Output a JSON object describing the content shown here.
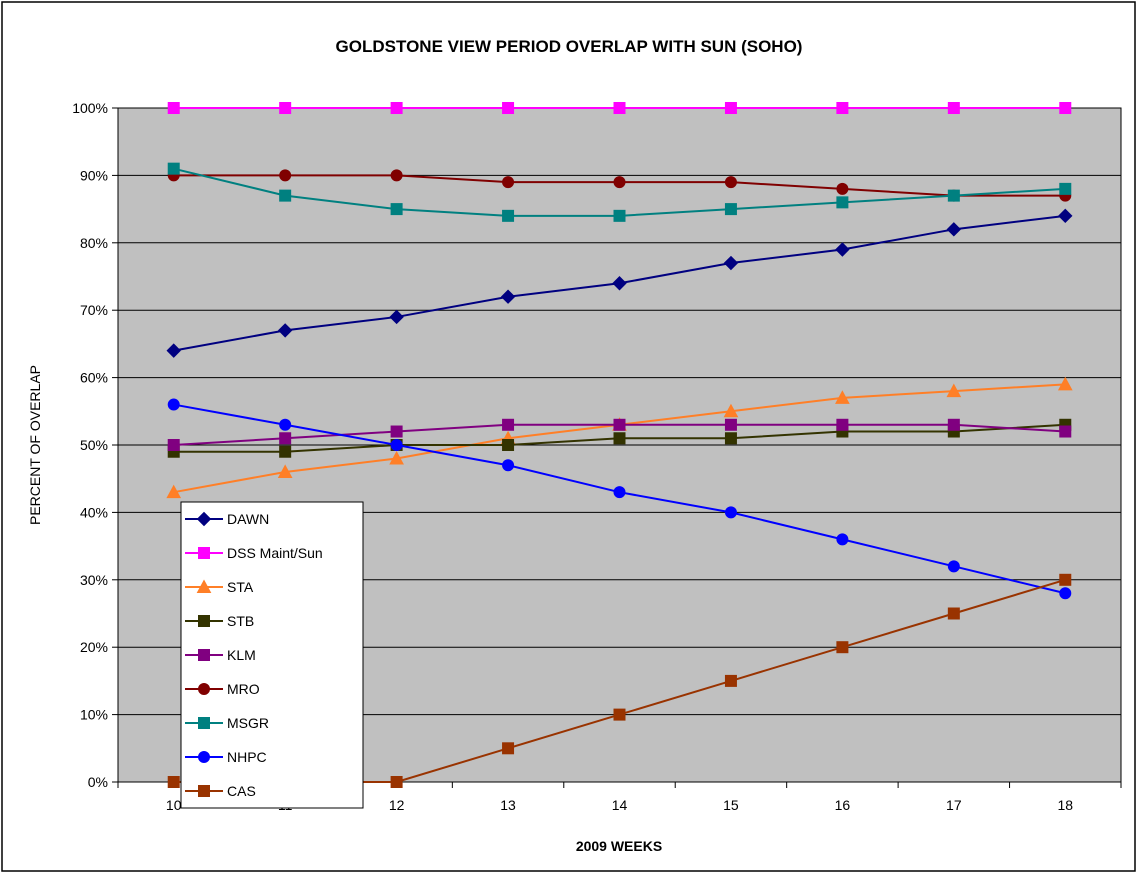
{
  "chart_data": {
    "type": "line",
    "title": "GOLDSTONE VIEW PERIOD OVERLAP WITH SUN (SOHO)",
    "xlabel": "2009 WEEKS",
    "ylabel": "PERCENT OF OVERLAP",
    "categories": [
      "10",
      "11",
      "12",
      "13",
      "14",
      "15",
      "16",
      "17",
      "18"
    ],
    "y_tick_labels": [
      "0%",
      "10%",
      "20%",
      "30%",
      "40%",
      "50%",
      "60%",
      "70%",
      "80%",
      "90%",
      "100%"
    ],
    "ylim": [
      0,
      100
    ],
    "grid": true,
    "plot_background": "#c0c0c0",
    "legend_position": "left, inside plot area",
    "series": [
      {
        "name": "DAWN",
        "color": "#000080",
        "marker": "diamond",
        "values": [
          64,
          67,
          69,
          72,
          74,
          77,
          79,
          82,
          84
        ]
      },
      {
        "name": "DSS Maint/Sun",
        "color": "#ff00ff",
        "marker": "square",
        "values": [
          100,
          100,
          100,
          100,
          100,
          100,
          100,
          100,
          100
        ]
      },
      {
        "name": "STA",
        "color": "#ff7f27",
        "marker": "triangle",
        "values": [
          43,
          46,
          48,
          51,
          53,
          55,
          57,
          58,
          59
        ]
      },
      {
        "name": "STB",
        "color": "#333300",
        "marker": "square",
        "values": [
          49,
          49,
          50,
          50,
          51,
          51,
          52,
          52,
          53
        ]
      },
      {
        "name": "KLM",
        "color": "#800080",
        "marker": "square",
        "values": [
          50,
          51,
          52,
          53,
          53,
          53,
          53,
          53,
          52
        ]
      },
      {
        "name": "MRO",
        "color": "#800000",
        "marker": "circle",
        "values": [
          90,
          90,
          90,
          89,
          89,
          89,
          88,
          87,
          87
        ]
      },
      {
        "name": "MSGR",
        "color": "#008080",
        "marker": "square",
        "values": [
          91,
          87,
          85,
          84,
          84,
          85,
          86,
          87,
          88
        ]
      },
      {
        "name": "NHPC",
        "color": "#0000ff",
        "marker": "circle",
        "values": [
          56,
          53,
          50,
          47,
          43,
          40,
          36,
          32,
          28
        ]
      },
      {
        "name": "CAS",
        "color": "#993300",
        "marker": "square",
        "values": [
          0,
          0,
          0,
          5,
          10,
          15,
          20,
          25,
          30
        ]
      }
    ]
  }
}
